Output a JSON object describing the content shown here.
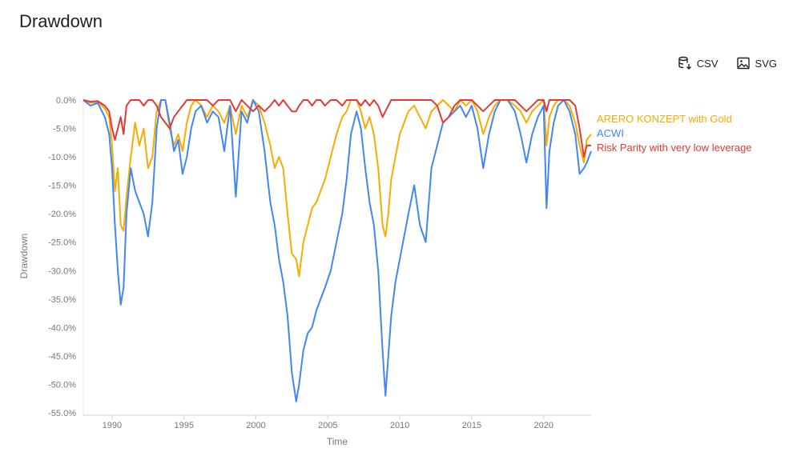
{
  "page": {
    "title": "Drawdown"
  },
  "toolbar": {
    "csv_label": "CSV",
    "svg_label": "SVG"
  },
  "colors": {
    "ARERO KONZEPT with Gold": "#f9ab00",
    "ACWI": "#4285f4",
    "Risk Parity with very low leverage": "#e53935"
  },
  "chart_data": {
    "type": "line",
    "title": "Drawdown",
    "xlabel": "Time",
    "ylabel": "Drawdown",
    "xlim": [
      1988.0,
      2023.3
    ],
    "ylim": [
      -55,
      0
    ],
    "x_ticks": [
      1990,
      1995,
      2000,
      2005,
      2010,
      2015,
      2020
    ],
    "y_ticks": [
      0,
      -5,
      -10,
      -15,
      -20,
      -25,
      -30,
      -35,
      -40,
      -45,
      -50,
      -55
    ],
    "y_tick_labels": [
      "0.0%",
      "-5.0%",
      "-10.0%",
      "-15.0%",
      "-20.0%",
      "-25.0%",
      "-30.0%",
      "-35.0%",
      "-40.0%",
      "-45.0%",
      "-50.0%",
      "-55.0%"
    ],
    "legend_position": "right",
    "grid": false,
    "series": [
      {
        "name": "ARERO KONZEPT with Gold",
        "color": "#f9ab00",
        "x": [
          1988.0,
          1988.5,
          1989.0,
          1989.5,
          1989.8,
          1990.0,
          1990.2,
          1990.4,
          1990.6,
          1990.8,
          1991.0,
          1991.3,
          1991.6,
          1991.9,
          1992.2,
          1992.5,
          1992.8,
          1993.1,
          1993.4,
          1993.7,
          1994.0,
          1994.3,
          1994.6,
          1994.9,
          1995.2,
          1995.5,
          1995.8,
          1996.2,
          1996.6,
          1997.0,
          1997.4,
          1997.8,
          1998.2,
          1998.6,
          1999.0,
          1999.4,
          1999.8,
          2000.2,
          2000.6,
          2001.0,
          2001.3,
          2001.6,
          2001.9,
          2002.2,
          2002.5,
          2002.8,
          2003.0,
          2003.3,
          2003.6,
          2003.9,
          2004.2,
          2004.5,
          2004.8,
          2005.2,
          2005.6,
          2006.0,
          2006.3,
          2006.6,
          2007.0,
          2007.3,
          2007.6,
          2007.9,
          2008.2,
          2008.5,
          2008.8,
          2009.0,
          2009.2,
          2009.4,
          2009.7,
          2010.0,
          2010.3,
          2010.6,
          2011.0,
          2011.4,
          2011.8,
          2012.2,
          2012.6,
          2013.0,
          2013.4,
          2013.8,
          2014.2,
          2014.6,
          2015.0,
          2015.4,
          2015.8,
          2016.2,
          2016.6,
          2017.0,
          2017.5,
          2018.0,
          2018.4,
          2018.8,
          2019.2,
          2019.6,
          2020.0,
          2020.2,
          2020.4,
          2020.7,
          2021.0,
          2021.4,
          2021.8,
          2022.2,
          2022.5,
          2022.8,
          2023.0,
          2023.3
        ],
        "values": [
          0,
          -0.5,
          -0.3,
          -1.5,
          -3,
          -8,
          -16,
          -12,
          -22,
          -23,
          -17,
          -10,
          -4,
          -8,
          -5,
          -12,
          -10,
          -2,
          0,
          0,
          -5,
          -8,
          -6,
          -9,
          -4,
          -1,
          0,
          -1,
          -3,
          -1,
          -2,
          -4,
          -1,
          -6,
          -1,
          -3,
          0,
          -1,
          -4,
          -8,
          -12,
          -10,
          -12,
          -20,
          -27,
          -28,
          -31,
          -25,
          -22,
          -19,
          -18,
          -16,
          -14,
          -10,
          -6,
          -3,
          -2,
          0,
          0,
          -2,
          -5,
          -3,
          -6,
          -12,
          -22,
          -24,
          -20,
          -14,
          -10,
          -6,
          -4,
          -2,
          -1,
          -3,
          -5,
          -2,
          -1,
          0,
          -1,
          -2,
          0,
          -1,
          0,
          -2,
          -6,
          -3,
          -1,
          0,
          0,
          -1,
          -2,
          -4,
          -2,
          -1,
          0,
          -8,
          -3,
          -1,
          0,
          0,
          -1,
          -4,
          -8,
          -11,
          -7,
          -6
        ]
      },
      {
        "name": "ACWI",
        "color": "#4285f4",
        "x": [
          1988.0,
          1988.5,
          1989.0,
          1989.5,
          1989.8,
          1990.0,
          1990.2,
          1990.4,
          1990.6,
          1990.8,
          1991.0,
          1991.3,
          1991.6,
          1991.9,
          1992.2,
          1992.5,
          1992.8,
          1993.1,
          1993.4,
          1993.7,
          1994.0,
          1994.3,
          1994.6,
          1994.9,
          1995.2,
          1995.5,
          1995.8,
          1996.2,
          1996.6,
          1997.0,
          1997.4,
          1997.8,
          1998.2,
          1998.6,
          1999.0,
          1999.4,
          1999.8,
          2000.2,
          2000.6,
          2001.0,
          2001.3,
          2001.6,
          2001.9,
          2002.2,
          2002.5,
          2002.8,
          2003.0,
          2003.3,
          2003.6,
          2003.9,
          2004.2,
          2004.5,
          2004.8,
          2005.2,
          2005.6,
          2006.0,
          2006.3,
          2006.6,
          2007.0,
          2007.3,
          2007.6,
          2007.9,
          2008.2,
          2008.5,
          2008.8,
          2009.0,
          2009.2,
          2009.4,
          2009.7,
          2010.0,
          2010.3,
          2010.6,
          2011.0,
          2011.4,
          2011.8,
          2012.2,
          2012.6,
          2013.0,
          2013.4,
          2013.8,
          2014.2,
          2014.6,
          2015.0,
          2015.4,
          2015.8,
          2016.2,
          2016.6,
          2017.0,
          2017.5,
          2018.0,
          2018.4,
          2018.8,
          2019.2,
          2019.6,
          2020.0,
          2020.2,
          2020.4,
          2020.7,
          2021.0,
          2021.4,
          2021.8,
          2022.2,
          2022.5,
          2022.8,
          2023.0,
          2023.3
        ],
        "values": [
          0,
          -1,
          -0.5,
          -3,
          -6,
          -12,
          -22,
          -30,
          -36,
          -33,
          -20,
          -12,
          -16,
          -18,
          -20,
          -24,
          -18,
          -5,
          0,
          0,
          -4,
          -9,
          -7,
          -13,
          -10,
          -5,
          -2,
          -1,
          -4,
          -2,
          -3,
          -9,
          -1,
          -17,
          -2,
          -4,
          0,
          -2,
          -9,
          -18,
          -22,
          -28,
          -32,
          -38,
          -48,
          -53,
          -50,
          -44,
          -41,
          -40,
          -37,
          -35,
          -33,
          -30,
          -25,
          -20,
          -14,
          -6,
          -2,
          -5,
          -12,
          -18,
          -22,
          -30,
          -44,
          -52,
          -45,
          -38,
          -32,
          -28,
          -24,
          -20,
          -15,
          -22,
          -25,
          -12,
          -8,
          -4,
          -3,
          -2,
          -1,
          -3,
          -1,
          -5,
          -12,
          -6,
          -2,
          0,
          0,
          -2,
          -6,
          -11,
          -6,
          -3,
          -1,
          -19,
          -9,
          -4,
          -1,
          0,
          -2,
          -6,
          -13,
          -12,
          -11,
          -9
        ]
      },
      {
        "name": "Risk Parity with very low leverage",
        "color": "#e53935",
        "x": [
          1988.0,
          1988.5,
          1989.0,
          1989.5,
          1989.8,
          1990.0,
          1990.2,
          1990.4,
          1990.6,
          1990.8,
          1991.0,
          1991.3,
          1991.6,
          1991.9,
          1992.2,
          1992.5,
          1992.8,
          1993.1,
          1993.4,
          1993.7,
          1994.0,
          1994.3,
          1994.6,
          1994.9,
          1995.2,
          1995.5,
          1995.8,
          1996.2,
          1996.6,
          1997.0,
          1997.4,
          1997.8,
          1998.2,
          1998.6,
          1999.0,
          1999.4,
          1999.8,
          2000.2,
          2000.6,
          2001.0,
          2001.3,
          2001.6,
          2001.9,
          2002.2,
          2002.5,
          2002.8,
          2003.0,
          2003.3,
          2003.6,
          2003.9,
          2004.2,
          2004.5,
          2004.8,
          2005.2,
          2005.6,
          2006.0,
          2006.3,
          2006.6,
          2007.0,
          2007.3,
          2007.6,
          2007.9,
          2008.2,
          2008.5,
          2008.8,
          2009.0,
          2009.2,
          2009.4,
          2009.7,
          2010.0,
          2010.3,
          2010.6,
          2011.0,
          2011.4,
          2011.8,
          2012.2,
          2012.6,
          2013.0,
          2013.4,
          2013.8,
          2014.2,
          2014.6,
          2015.0,
          2015.4,
          2015.8,
          2016.2,
          2016.6,
          2017.0,
          2017.5,
          2018.0,
          2018.4,
          2018.8,
          2019.2,
          2019.6,
          2020.0,
          2020.2,
          2020.4,
          2020.7,
          2021.0,
          2021.4,
          2021.8,
          2022.2,
          2022.5,
          2022.8,
          2023.0,
          2023.3
        ],
        "values": [
          0,
          -0.3,
          -0.2,
          -1,
          -2,
          -5,
          -7,
          -5,
          -3,
          -6,
          -1,
          0,
          0,
          0,
          -1,
          0,
          0,
          -1,
          -3,
          -4,
          -5,
          -3,
          -2,
          -1,
          0,
          0,
          0,
          0,
          0,
          -1,
          0,
          0,
          0,
          -2,
          0,
          -1,
          -2,
          -1,
          -2,
          -1,
          0,
          -1,
          0,
          -1,
          -2,
          -2,
          -1,
          0,
          0,
          -1,
          0,
          0,
          -1,
          0,
          0,
          -1,
          0,
          0,
          0,
          -1,
          0,
          -1,
          0,
          -1,
          -3,
          -2,
          -1,
          0,
          0,
          0,
          0,
          0,
          0,
          0,
          0,
          0,
          -1,
          -4,
          -3,
          -1,
          0,
          0,
          0,
          -1,
          -2,
          -1,
          0,
          0,
          0,
          0,
          -1,
          -2,
          -1,
          0,
          0,
          -2,
          0,
          0,
          0,
          0,
          0,
          -1,
          -5,
          -10,
          -8,
          -8
        ]
      }
    ]
  }
}
